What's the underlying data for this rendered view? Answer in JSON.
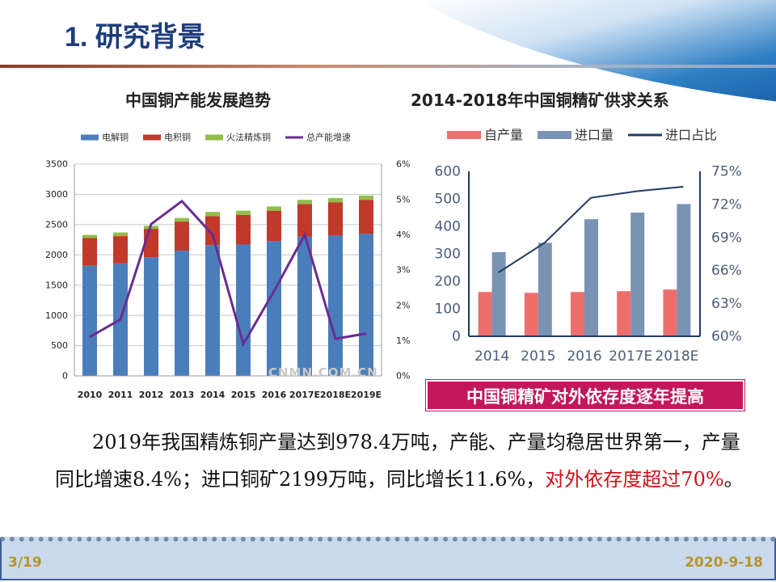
{
  "slide": {
    "title": "1. 研究背景",
    "callout": "中国铜精矿对外依存度逐年提高",
    "watermark": "CNMN.COM.CN",
    "paragraph": {
      "part1": "2019年我国精炼铜产量达到978.4万吨，产能、产量均稳居世界第一，产量同比增速8.4%；进口铜矿2199万吨，同比增长11.6%，",
      "part2": "对外依存度超过70%",
      "part3": "。"
    },
    "footer": {
      "page": "3/19",
      "date": "2020-9-18"
    }
  },
  "chart_data": [
    {
      "type": "bar",
      "stacked": true,
      "title": "中国铜产能发展趋势",
      "categories": [
        "2010",
        "2011",
        "2012",
        "2013",
        "2014",
        "2015",
        "2016",
        "2017E",
        "2018E",
        "2019E"
      ],
      "ylim": [
        0,
        3500
      ],
      "yticks": [
        "0",
        "500",
        "1000",
        "1500",
        "2000",
        "2500",
        "3000",
        "3500"
      ],
      "y2lim": [
        0,
        6
      ],
      "y2ticks": [
        "0%",
        "1%",
        "2%",
        "3%",
        "4%",
        "5%",
        "6%"
      ],
      "grid": true,
      "legend": "top",
      "series": [
        {
          "name": "电解铜",
          "color": "#4a7ebb",
          "values": [
            1820,
            1860,
            1960,
            2070,
            2160,
            2170,
            2230,
            2300,
            2320,
            2350
          ]
        },
        {
          "name": "电积铜",
          "color": "#c0392b",
          "values": [
            460,
            450,
            470,
            480,
            480,
            490,
            500,
            540,
            550,
            560
          ]
        },
        {
          "name": "火法精炼铜",
          "color": "#8fbf4a",
          "values": [
            50,
            60,
            50,
            60,
            70,
            70,
            70,
            70,
            70,
            70
          ]
        },
        {
          "name": "总产能增速",
          "type": "line",
          "axis": "right",
          "color": "#6a2c91",
          "values": [
            1.1,
            1.6,
            4.3,
            4.95,
            4.0,
            0.9,
            2.4,
            4.0,
            1.05,
            1.2
          ]
        }
      ]
    },
    {
      "type": "bar",
      "title": "2014-2018年中国铜精矿供求关系",
      "categories": [
        "2014",
        "2015",
        "2016",
        "2017E",
        "2018E"
      ],
      "ylim": [
        0,
        600
      ],
      "yticks": [
        "0",
        "100",
        "200",
        "300",
        "400",
        "500",
        "600"
      ],
      "y2lim": [
        60,
        75
      ],
      "y2ticks": [
        "60%",
        "63%",
        "66%",
        "69%",
        "72%",
        "75%"
      ],
      "grid": false,
      "legend": "top",
      "series": [
        {
          "name": "自产量",
          "color": "#ee6e6e",
          "values": [
            161,
            158,
            161,
            164,
            170
          ]
        },
        {
          "name": "进口量",
          "color": "#7b93b3",
          "values": [
            306,
            340,
            426,
            450,
            481
          ]
        },
        {
          "name": "进口占比",
          "type": "line",
          "axis": "right",
          "color": "#1f3b63",
          "values": [
            65.8,
            68.5,
            72.6,
            73.2,
            73.6
          ]
        }
      ]
    }
  ]
}
